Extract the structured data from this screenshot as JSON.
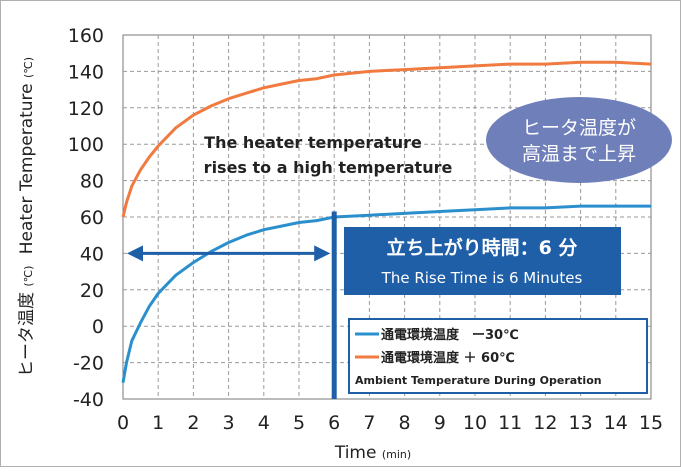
{
  "chart_data": {
    "type": "line",
    "xlabel": "Time",
    "xlabel_unit": "(min)",
    "ylabel": "ヒータ温度 (℃) Heater Temperature (℃)",
    "ylabel_parts": [
      "ヒータ温度",
      "(℃)",
      "Heater Temperature",
      "(℃)"
    ],
    "xlim": [
      0,
      15
    ],
    "ylim": [
      -40,
      160
    ],
    "x_ticks": [
      0,
      1,
      2,
      3,
      4,
      5,
      6,
      7,
      8,
      9,
      10,
      11,
      12,
      13,
      14,
      15
    ],
    "y_ticks": [
      -40,
      -20,
      0,
      20,
      40,
      60,
      80,
      100,
      120,
      140,
      160
    ],
    "grid": true,
    "series": [
      {
        "name": "通電環境温度　ー30℃",
        "color": "#2b8fcd",
        "x": [
          0,
          0.1,
          0.25,
          0.5,
          0.75,
          1,
          1.5,
          2,
          2.5,
          3,
          3.5,
          4,
          4.5,
          5,
          5.5,
          6,
          7,
          8,
          9,
          10,
          11,
          12,
          13,
          14,
          15
        ],
        "y": [
          -31,
          -20,
          -8,
          2,
          11,
          18,
          28,
          35,
          41,
          46,
          50,
          53,
          55,
          57,
          58,
          60,
          61,
          62,
          63,
          64,
          65,
          65,
          66,
          66,
          66
        ]
      },
      {
        "name": "通電環境温度 ＋ 60℃",
        "color": "#f07a3f",
        "x": [
          0,
          0.1,
          0.25,
          0.5,
          0.75,
          1,
          1.5,
          2,
          2.5,
          3,
          3.5,
          4,
          4.5,
          5,
          5.5,
          6,
          7,
          8,
          9,
          10,
          11,
          12,
          13,
          14,
          15
        ],
        "y": [
          60,
          68,
          77,
          86,
          93,
          99,
          109,
          116,
          121,
          125,
          128,
          131,
          133,
          135,
          136,
          138,
          140,
          141,
          142,
          143,
          144,
          144,
          145,
          145,
          144
        ]
      }
    ],
    "rise_marker": {
      "x": 6,
      "arrow_y": 40,
      "arrow_x_start": 0,
      "arrow_x_end": 6,
      "color": "#1f5fa8"
    },
    "annotations": {
      "rise_text_jp": "立ち上がり時間：6 分",
      "rise_text_en": "The Rise Time is 6 Minutes",
      "heater_text_line1": "The heater temperature",
      "heater_text_line2": "rises to a high temperature",
      "bubble_line1": "ヒータ温度が",
      "bubble_line2": "高温まで上昇"
    },
    "legend": {
      "position": "bottom-right",
      "entries": [
        "通電環境温度　ー30℃",
        "通電環境温度 ＋ 60℃"
      ],
      "caption": "Ambient Temperature During Operation"
    }
  }
}
